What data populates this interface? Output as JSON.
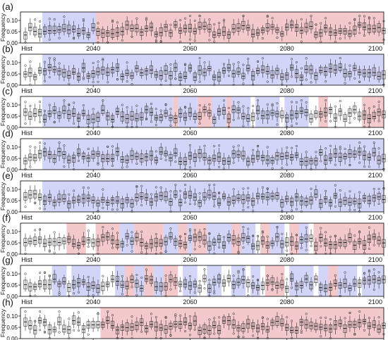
{
  "figure": {
    "panels": [
      {
        "label": "(a)",
        "shading": [
          [
            "B",
            2030,
            2041
          ],
          [
            "R",
            2041,
            2100
          ]
        ]
      },
      {
        "label": "(b)",
        "shading": [
          [
            "B",
            2030,
            2100
          ]
        ]
      },
      {
        "label": "(c)",
        "shading": [
          [
            "B",
            2030,
            2056
          ],
          [
            "R",
            2057,
            2058
          ],
          [
            "B",
            2058,
            2061
          ],
          [
            "R",
            2062,
            2065
          ],
          [
            "B",
            2065,
            2067
          ],
          [
            "R",
            2068,
            2069
          ],
          [
            "B",
            2069,
            2072
          ],
          [
            "B",
            2074,
            2078
          ],
          [
            "B",
            2080,
            2084
          ],
          [
            "R",
            2087,
            2088
          ],
          [
            "R",
            2096,
            2098
          ],
          [
            "R",
            2099,
            2100
          ]
        ]
      },
      {
        "label": "(d)",
        "shading": [
          [
            "B",
            2030,
            2100
          ]
        ]
      },
      {
        "label": "(e)",
        "shading": [
          [
            "B",
            2030,
            2100
          ]
        ]
      },
      {
        "label": "(f)",
        "shading": [
          [
            "R",
            2035,
            2038
          ],
          [
            "R",
            2041,
            2045
          ],
          [
            "B",
            2046,
            2048
          ],
          [
            "R",
            2049,
            2054
          ],
          [
            "B",
            2055,
            2058
          ],
          [
            "R",
            2058,
            2060
          ],
          [
            "B",
            2060,
            2061
          ],
          [
            "R",
            2061,
            2063
          ],
          [
            "B",
            2064,
            2069
          ],
          [
            "R",
            2069,
            2071
          ],
          [
            "B",
            2071,
            2073
          ],
          [
            "R",
            2075,
            2077
          ],
          [
            "B",
            2077,
            2079
          ],
          [
            "R",
            2081,
            2083
          ],
          [
            "B",
            2083,
            2084
          ],
          [
            "R",
            2086,
            2100
          ]
        ]
      },
      {
        "label": "(g)",
        "shading": [
          [
            "B",
            2032,
            2034
          ],
          [
            "B",
            2036,
            2041
          ],
          [
            "B",
            2045,
            2047
          ],
          [
            "R",
            2047,
            2048
          ],
          [
            "B",
            2049,
            2051
          ],
          [
            "R",
            2051,
            2052
          ],
          [
            "B",
            2053,
            2055
          ],
          [
            "R",
            2055,
            2057
          ],
          [
            "B",
            2059,
            2061
          ],
          [
            "B",
            2064,
            2066
          ],
          [
            "B",
            2069,
            2071
          ],
          [
            "B",
            2073,
            2074
          ],
          [
            "R",
            2076,
            2077
          ],
          [
            "R",
            2078,
            2079
          ],
          [
            "B",
            2081,
            2085
          ],
          [
            "B",
            2087,
            2089
          ],
          [
            "R",
            2089,
            2091
          ],
          [
            "B",
            2091,
            2094
          ],
          [
            "B",
            2096,
            2098
          ],
          [
            "B",
            2099,
            2100
          ]
        ]
      },
      {
        "label": "(h)",
        "shading": [
          [
            "R",
            2042,
            2100
          ]
        ]
      }
    ],
    "colors": {
      "red": "#f4c9cc",
      "blue": "#d2d5f7",
      "box": "#333333"
    }
  },
  "chart_data": {
    "type": "box",
    "ylabel": "Frequency",
    "yticks": [
      "0.00",
      "0.05",
      "0.10"
    ],
    "ylim": [
      0,
      0.125
    ],
    "x_first_label": "Hist",
    "x_tick_labels": [
      "2040",
      "2060",
      "2080",
      "2100"
    ],
    "x_tick_years": [
      2040,
      2060,
      2080,
      2100
    ],
    "xlim": [
      2026,
      2100
    ],
    "grid": false
  }
}
